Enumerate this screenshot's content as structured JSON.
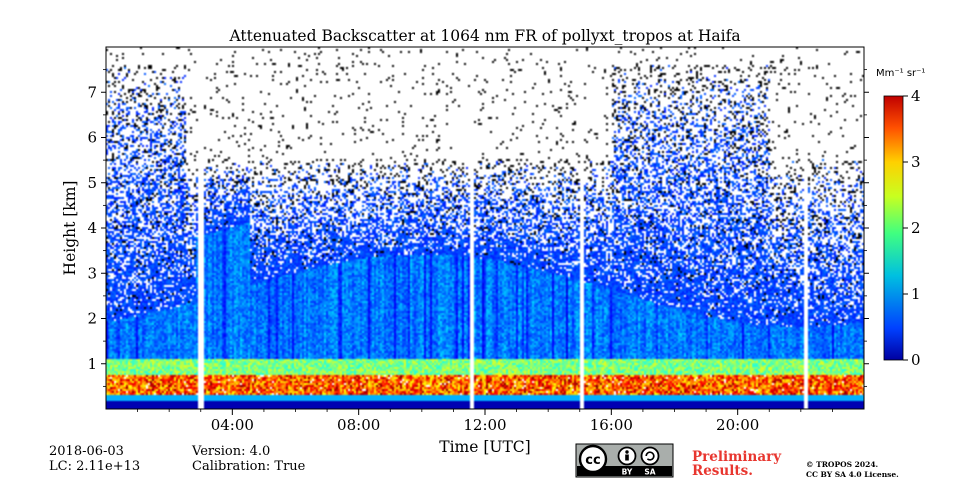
{
  "chart_data": {
    "type": "heatmap",
    "title": "Attenuated Backscatter at 1064 nm FR of pollyxt_tropos at Haifa",
    "xlabel": "Time [UTC]",
    "ylabel": "Height [km]",
    "x_unit": "hours UTC",
    "xlim": [
      0,
      24
    ],
    "ylim": [
      0,
      8
    ],
    "x_ticks": [
      {
        "value": 4,
        "label": "04:00"
      },
      {
        "value": 8,
        "label": "08:00"
      },
      {
        "value": 12,
        "label": "12:00"
      },
      {
        "value": 16,
        "label": "16:00"
      },
      {
        "value": 20,
        "label": "20:00"
      }
    ],
    "y_ticks": [
      {
        "value": 1,
        "label": "1"
      },
      {
        "value": 2,
        "label": "2"
      },
      {
        "value": 3,
        "label": "3"
      },
      {
        "value": 4,
        "label": "4"
      },
      {
        "value": 5,
        "label": "5"
      },
      {
        "value": 6,
        "label": "6"
      },
      {
        "value": 7,
        "label": "7"
      }
    ],
    "colorbar": {
      "unit_label": "Mm⁻¹ sr⁻¹",
      "range": [
        0,
        4
      ],
      "colormap": "jet",
      "ticks": [
        {
          "value": 0,
          "label": "0"
        },
        {
          "value": 1,
          "label": "1"
        },
        {
          "value": 2,
          "label": "2"
        },
        {
          "value": 3,
          "label": "3"
        },
        {
          "value": 4,
          "label": "4"
        }
      ]
    },
    "data_gaps_hours": [
      [
        2.9,
        3.05
      ],
      [
        11.5,
        11.62
      ],
      [
        15.0,
        15.12
      ],
      [
        22.1,
        22.2
      ]
    ]
  },
  "footer": {
    "date": "2018-06-03",
    "lc": "LC: 2.11e+13",
    "version": "Version: 4.0",
    "calibration": "Calibration: True",
    "prelim_line1": "Preliminary",
    "prelim_line2": "Results.",
    "copyright_line1": "© TROPOS 2024.",
    "copyright_line2": "CC BY SA 4.0 License.",
    "cc_badge_text": "cc",
    "by_text": "BY",
    "sa_text": "SA"
  },
  "colors": {
    "preliminary": "#e8362f"
  }
}
